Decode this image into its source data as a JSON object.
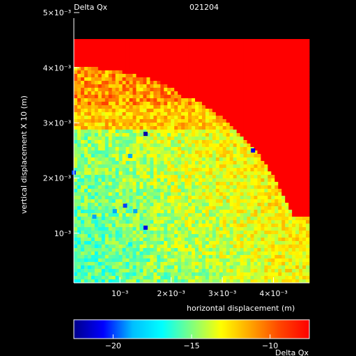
{
  "header": {
    "left": "Delta Qx",
    "right": "021204"
  },
  "chart_data": {
    "type": "heatmap",
    "title": "Delta Qx",
    "run_id": "021204",
    "xlabel": "horizontal displacement (m)",
    "ylabel": "vertical displacement X 10 (m)",
    "xlim": [
      0.0001,
      0.0047
    ],
    "ylim": [
      0.0001,
      0.0049
    ],
    "x_ticks": [
      0.001,
      0.002,
      0.003,
      0.004
    ],
    "x_tick_labels": [
      "10⁻³",
      "2×10⁻³",
      "3×10⁻³",
      "4×10⁻³"
    ],
    "y_ticks": [
      0.001,
      0.002,
      0.003,
      0.004,
      0.005
    ],
    "y_tick_labels": [
      "10⁻³",
      "2×10⁻³",
      "3×10⁻³",
      "4×10⁻³",
      "5×10⁻³"
    ],
    "colorbar": {
      "label": "Delta Qx",
      "range": [
        -22.5,
        -7.5
      ],
      "ticks": [
        -20,
        -15,
        -10
      ],
      "tick_labels": [
        "−20",
        "−15",
        "−10"
      ],
      "colors": [
        "#00008b",
        "#0000ff",
        "#00bfff",
        "#00ffff",
        "#7fff7f",
        "#ffff00",
        "#ffa500",
        "#ff4500",
        "#ff0000"
      ]
    },
    "grid": false,
    "regions": [
      {
        "description": "upper-right region beyond stable area",
        "value": -7.5
      },
      {
        "description": "top band",
        "value": -11
      },
      {
        "description": "middle band",
        "value": -13
      },
      {
        "description": "lower-left core",
        "value": -16
      }
    ],
    "outliers": [
      {
        "x": 0.0015,
        "y": 0.0028,
        "value": -22
      },
      {
        "x": 0.0036,
        "y": 0.0025,
        "value": -21
      },
      {
        "x": 0.0001,
        "y": 0.0021,
        "value": -20
      },
      {
        "x": 0.0012,
        "y": 0.0024,
        "value": -19
      },
      {
        "x": 0.0011,
        "y": 0.0015,
        "value": -20
      },
      {
        "x": 0.0013,
        "y": 0.0014,
        "value": -19
      },
      {
        "x": 0.0005,
        "y": 0.0013,
        "value": -19
      },
      {
        "x": 0.0015,
        "y": 0.0011,
        "value": -21
      },
      {
        "x": 0.0012,
        "y": 0.0008,
        "value": -17
      },
      {
        "x": 0.0009,
        "y": 0.0014,
        "value": -19
      }
    ]
  }
}
